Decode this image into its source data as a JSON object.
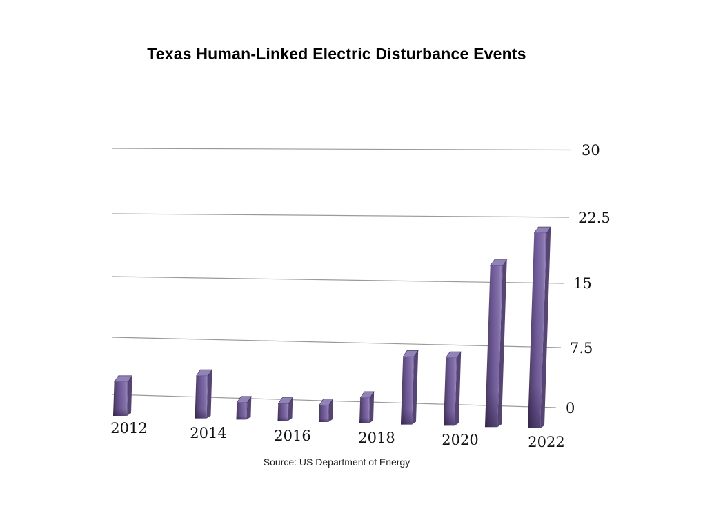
{
  "page": {
    "background": "#ffffff"
  },
  "header": {
    "title": "Texas Human-Linked Electric Disturbance Events"
  },
  "footer": {
    "source": "Source: US Department of Energy"
  },
  "chart_data": {
    "type": "bar",
    "style": "3d-keynote",
    "title": "Texas Human-Linked Electric Disturbance Events",
    "source": "Source: US Department of Energy",
    "categories": [
      "2012",
      "2013",
      "2014",
      "2015",
      "2016",
      "2017",
      "2018",
      "2019",
      "2020",
      "2021",
      "2022"
    ],
    "values": [
      4,
      0,
      5,
      2,
      2,
      2,
      3,
      8,
      8,
      19,
      23
    ],
    "x_tick_labels": [
      "2012",
      "2014",
      "2016",
      "2018",
      "2020",
      "2022"
    ],
    "y_tick_labels": [
      "30",
      "22.5",
      "15",
      "7.5",
      "0"
    ],
    "y_ticks": [
      30,
      22.5,
      15,
      7.5,
      0
    ],
    "ylim": [
      0,
      30
    ],
    "xlabel": "",
    "ylabel": "",
    "legend": "none",
    "grid": "horizontal",
    "axis_label_side": "right",
    "colors": {
      "bar_front": "#6f5b99",
      "bar_front_dark": "#3f3058",
      "bar_highlight": "#9687bd",
      "bar_top": "#9182b8",
      "bar_side": "#564573",
      "gridline": "#9a9a9a",
      "text": "#111111",
      "background": "#ffffff"
    }
  }
}
